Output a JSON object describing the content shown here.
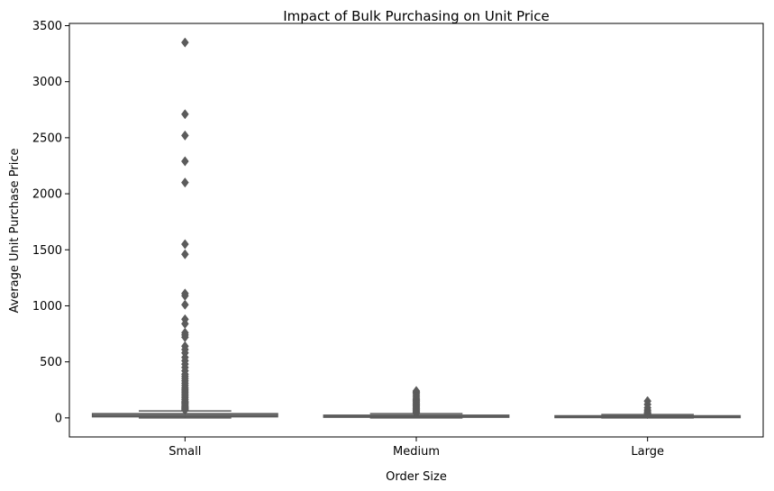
{
  "chart_data": {
    "type": "box",
    "title": "Impact of Bulk Purchasing on Unit Price",
    "xlabel": "Order Size",
    "ylabel": "Average Unit Purchase Price",
    "categories": [
      "Small",
      "Medium",
      "Large"
    ],
    "ylim": [
      -170,
      3520
    ],
    "yticks": [
      0,
      500,
      1000,
      1500,
      2000,
      2500,
      3000,
      3500
    ],
    "grid": false,
    "box_color": "#8c8c8c",
    "line_color": "#5b5b5b",
    "boxes": [
      {
        "category": "Small",
        "q1": 10,
        "median": 22,
        "q3": 38,
        "whisker_low": 0,
        "whisker_high": 62,
        "outliers": [
          3350,
          2710,
          2520,
          2290,
          2100,
          1550,
          1460,
          1110,
          1090,
          1010,
          880,
          840,
          760,
          740,
          720,
          640,
          610,
          580,
          540,
          510,
          480,
          450,
          420,
          390,
          370,
          350,
          330,
          310,
          290,
          270,
          255,
          240,
          225,
          210,
          195,
          180,
          165,
          150,
          140,
          130,
          120,
          110,
          100,
          92,
          85,
          78,
          70
        ]
      },
      {
        "category": "Medium",
        "q1": 6,
        "median": 14,
        "q3": 24,
        "whisker_low": 0,
        "whisker_high": 38,
        "outliers": [
          240,
          230,
          220,
          205,
          190,
          175,
          165,
          155,
          145,
          135,
          125,
          115,
          105,
          95,
          85,
          75,
          65,
          55,
          48,
          42
        ]
      },
      {
        "category": "Large",
        "q1": 5,
        "median": 11,
        "q3": 19,
        "whisker_low": 0,
        "whisker_high": 30,
        "outliers": [
          150,
          120,
          90,
          70,
          55,
          45,
          38,
          34
        ]
      }
    ]
  }
}
